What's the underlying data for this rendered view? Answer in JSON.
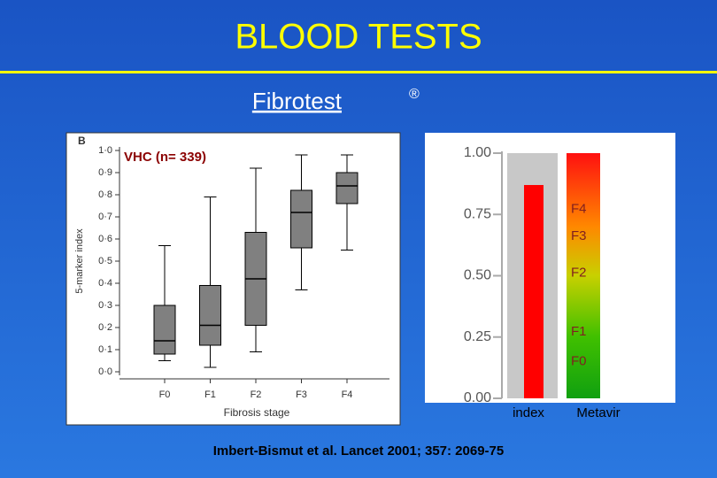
{
  "title": "BLOOD TESTS",
  "subtitle": "Fibrotest",
  "subtitle_mark": "®",
  "citation": "Imbert-Bismut et al. Lancet 2001; 357: 2069-75",
  "chart_data": [
    {
      "type": "box",
      "panel_label": "B",
      "annotation": "VHC (n= 339)",
      "y_label": "5-marker index",
      "x_label": "Fibrosis stage",
      "categories": [
        "F0",
        "F1",
        "F2",
        "F3",
        "F4"
      ],
      "boxes": [
        {
          "min": 0.05,
          "q1": 0.08,
          "median": 0.14,
          "q3": 0.3,
          "max": 0.57
        },
        {
          "min": 0.02,
          "q1": 0.12,
          "median": 0.21,
          "q3": 0.39,
          "max": 0.79
        },
        {
          "min": 0.09,
          "q1": 0.21,
          "median": 0.42,
          "q3": 0.63,
          "max": 0.92
        },
        {
          "min": 0.37,
          "q1": 0.56,
          "median": 0.72,
          "q3": 0.82,
          "max": 0.98
        },
        {
          "min": 0.55,
          "q1": 0.76,
          "median": 0.84,
          "q3": 0.9,
          "max": 0.98
        }
      ],
      "color": "#808080",
      "ylim": [
        0,
        1
      ],
      "yticks": [
        {
          "value": 0,
          "label": "0·0"
        },
        {
          "value": 0.1,
          "label": "0·1"
        },
        {
          "value": 0.2,
          "label": "0·2"
        },
        {
          "value": 0.3,
          "label": "0·3"
        },
        {
          "value": 0.4,
          "label": "0·4"
        },
        {
          "value": 0.5,
          "label": "0·5"
        },
        {
          "value": 0.6,
          "label": "0·6"
        },
        {
          "value": 0.7,
          "label": "0·7"
        },
        {
          "value": 0.8,
          "label": "0·8"
        },
        {
          "value": 0.9,
          "label": "0·9"
        },
        {
          "value": 1,
          "label": "1·0"
        }
      ]
    },
    {
      "type": "bar",
      "categories": [
        "index",
        "Metavir"
      ],
      "values": [
        0.87,
        1
      ],
      "color": "#ff0000",
      "ylim": [
        0,
        1
      ],
      "yticks": [
        {
          "value": 0,
          "label": "0.00"
        },
        0.25,
        {
          "value": 0.5,
          "label": "0.50"
        },
        0.75,
        {
          "value": 1,
          "label": "1.00"
        }
      ],
      "metavir_labels": [
        {
          "label": "F4",
          "value": 0.77
        },
        {
          "label": "F3",
          "value": 0.66
        },
        {
          "label": "F2",
          "value": 0.51
        },
        {
          "label": "F1",
          "value": 0.27
        },
        {
          "label": "F0",
          "value": 0.15
        }
      ]
    }
  ]
}
